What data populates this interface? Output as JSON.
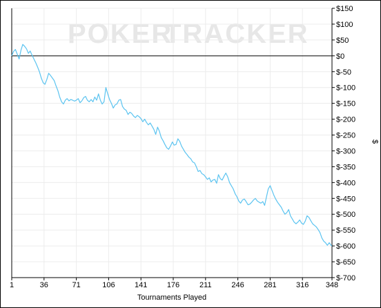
{
  "watermark": {
    "text_left": "POKER",
    "text_right": "TRACKER",
    "color_left": "#e3e3e3",
    "color_right": "#ececec"
  },
  "chart_data": {
    "type": "line",
    "title": "",
    "xlabel": "Tournaments Played",
    "ylabel": "$",
    "xlim": [
      1,
      348
    ],
    "ylim": [
      -700,
      150
    ],
    "x_ticks": [
      1,
      36,
      71,
      106,
      141,
      176,
      211,
      246,
      281,
      316,
      348
    ],
    "y_ticks": [
      150,
      100,
      50,
      0,
      -50,
      -100,
      -150,
      -200,
      -250,
      -300,
      -350,
      -400,
      -450,
      -500,
      -550,
      -600,
      -650,
      -700
    ],
    "y_tick_labels": [
      "$150",
      "$100",
      "$50",
      "$0",
      "$-50",
      "$-100",
      "$-150",
      "$-200",
      "$-250",
      "$-300",
      "$-350",
      "$-400",
      "$-450",
      "$-500",
      "$-550",
      "$-600",
      "$-650",
      "$-700"
    ],
    "grid": true,
    "zero_line": true,
    "line_color": "#5ac3f0",
    "series": [
      {
        "x": [
          1,
          3,
          5,
          7,
          9,
          11,
          13,
          15,
          17,
          19,
          21,
          23,
          25,
          27,
          29,
          31,
          33,
          35,
          37,
          39,
          41,
          43,
          45,
          47,
          49,
          51,
          53,
          55,
          57,
          59,
          61,
          63,
          65,
          67,
          69,
          71,
          73,
          75,
          77,
          79,
          81,
          83,
          85,
          87,
          89,
          91,
          93,
          95,
          97,
          99,
          101,
          103,
          105,
          107,
          109,
          111,
          113,
          115,
          117,
          119,
          121,
          123,
          125,
          127,
          129,
          131,
          133,
          135,
          137,
          139,
          141,
          143,
          145,
          147,
          149,
          151,
          153,
          155,
          157,
          159,
          161,
          163,
          165,
          167,
          169,
          171,
          173,
          175,
          177,
          179,
          181,
          183,
          185,
          187,
          189,
          191,
          193,
          195,
          197,
          199,
          201,
          203,
          205,
          207,
          209,
          211,
          213,
          215,
          217,
          219,
          221,
          223,
          225,
          227,
          229,
          231,
          233,
          235,
          237,
          239,
          241,
          243,
          245,
          247,
          249,
          251,
          253,
          255,
          257,
          259,
          261,
          263,
          265,
          267,
          269,
          271,
          273,
          275,
          277,
          279,
          281,
          283,
          285,
          287,
          289,
          291,
          293,
          295,
          297,
          299,
          301,
          303,
          305,
          307,
          309,
          311,
          313,
          315,
          317,
          319,
          321,
          323,
          325,
          327,
          329,
          331,
          333,
          335,
          337,
          339,
          341,
          343,
          345,
          347,
          348
        ],
        "y": [
          0,
          14,
          20,
          5,
          -10,
          18,
          36,
          30,
          22,
          8,
          15,
          2,
          -10,
          -22,
          -35,
          -50,
          -70,
          -85,
          -90,
          -75,
          -55,
          -62,
          -70,
          -78,
          -95,
          -110,
          -130,
          -145,
          -152,
          -140,
          -135,
          -142,
          -138,
          -140,
          -143,
          -140,
          -135,
          -148,
          -142,
          -132,
          -128,
          -140,
          -145,
          -138,
          -145,
          -130,
          -140,
          -120,
          -140,
          -152,
          -145,
          -100,
          -120,
          -138,
          -150,
          -165,
          -155,
          -152,
          -140,
          -138,
          -160,
          -168,
          -172,
          -185,
          -178,
          -182,
          -190,
          -195,
          -188,
          -192,
          -198,
          -208,
          -200,
          -210,
          -218,
          -212,
          -222,
          -232,
          -248,
          -225,
          -238,
          -258,
          -268,
          -280,
          -290,
          -295,
          -285,
          -272,
          -282,
          -280,
          -262,
          -270,
          -285,
          -295,
          -305,
          -312,
          -320,
          -325,
          -335,
          -338,
          -350,
          -365,
          -362,
          -372,
          -375,
          -382,
          -390,
          -385,
          -398,
          -392,
          -390,
          -402,
          -375,
          -388,
          -392,
          -380,
          -370,
          -382,
          -400,
          -410,
          -420,
          -435,
          -445,
          -458,
          -465,
          -455,
          -452,
          -460,
          -470,
          -468,
          -462,
          -455,
          -450,
          -458,
          -462,
          -465,
          -460,
          -472,
          -445,
          -420,
          -410,
          -425,
          -440,
          -452,
          -462,
          -470,
          -478,
          -490,
          -500,
          -495,
          -485,
          -505,
          -515,
          -525,
          -530,
          -525,
          -518,
          -528,
          -532,
          -522,
          -505,
          -510,
          -520,
          -530,
          -535,
          -540,
          -548,
          -558,
          -575,
          -585,
          -590,
          -598,
          -590,
          -598,
          -600
        ]
      }
    ]
  }
}
